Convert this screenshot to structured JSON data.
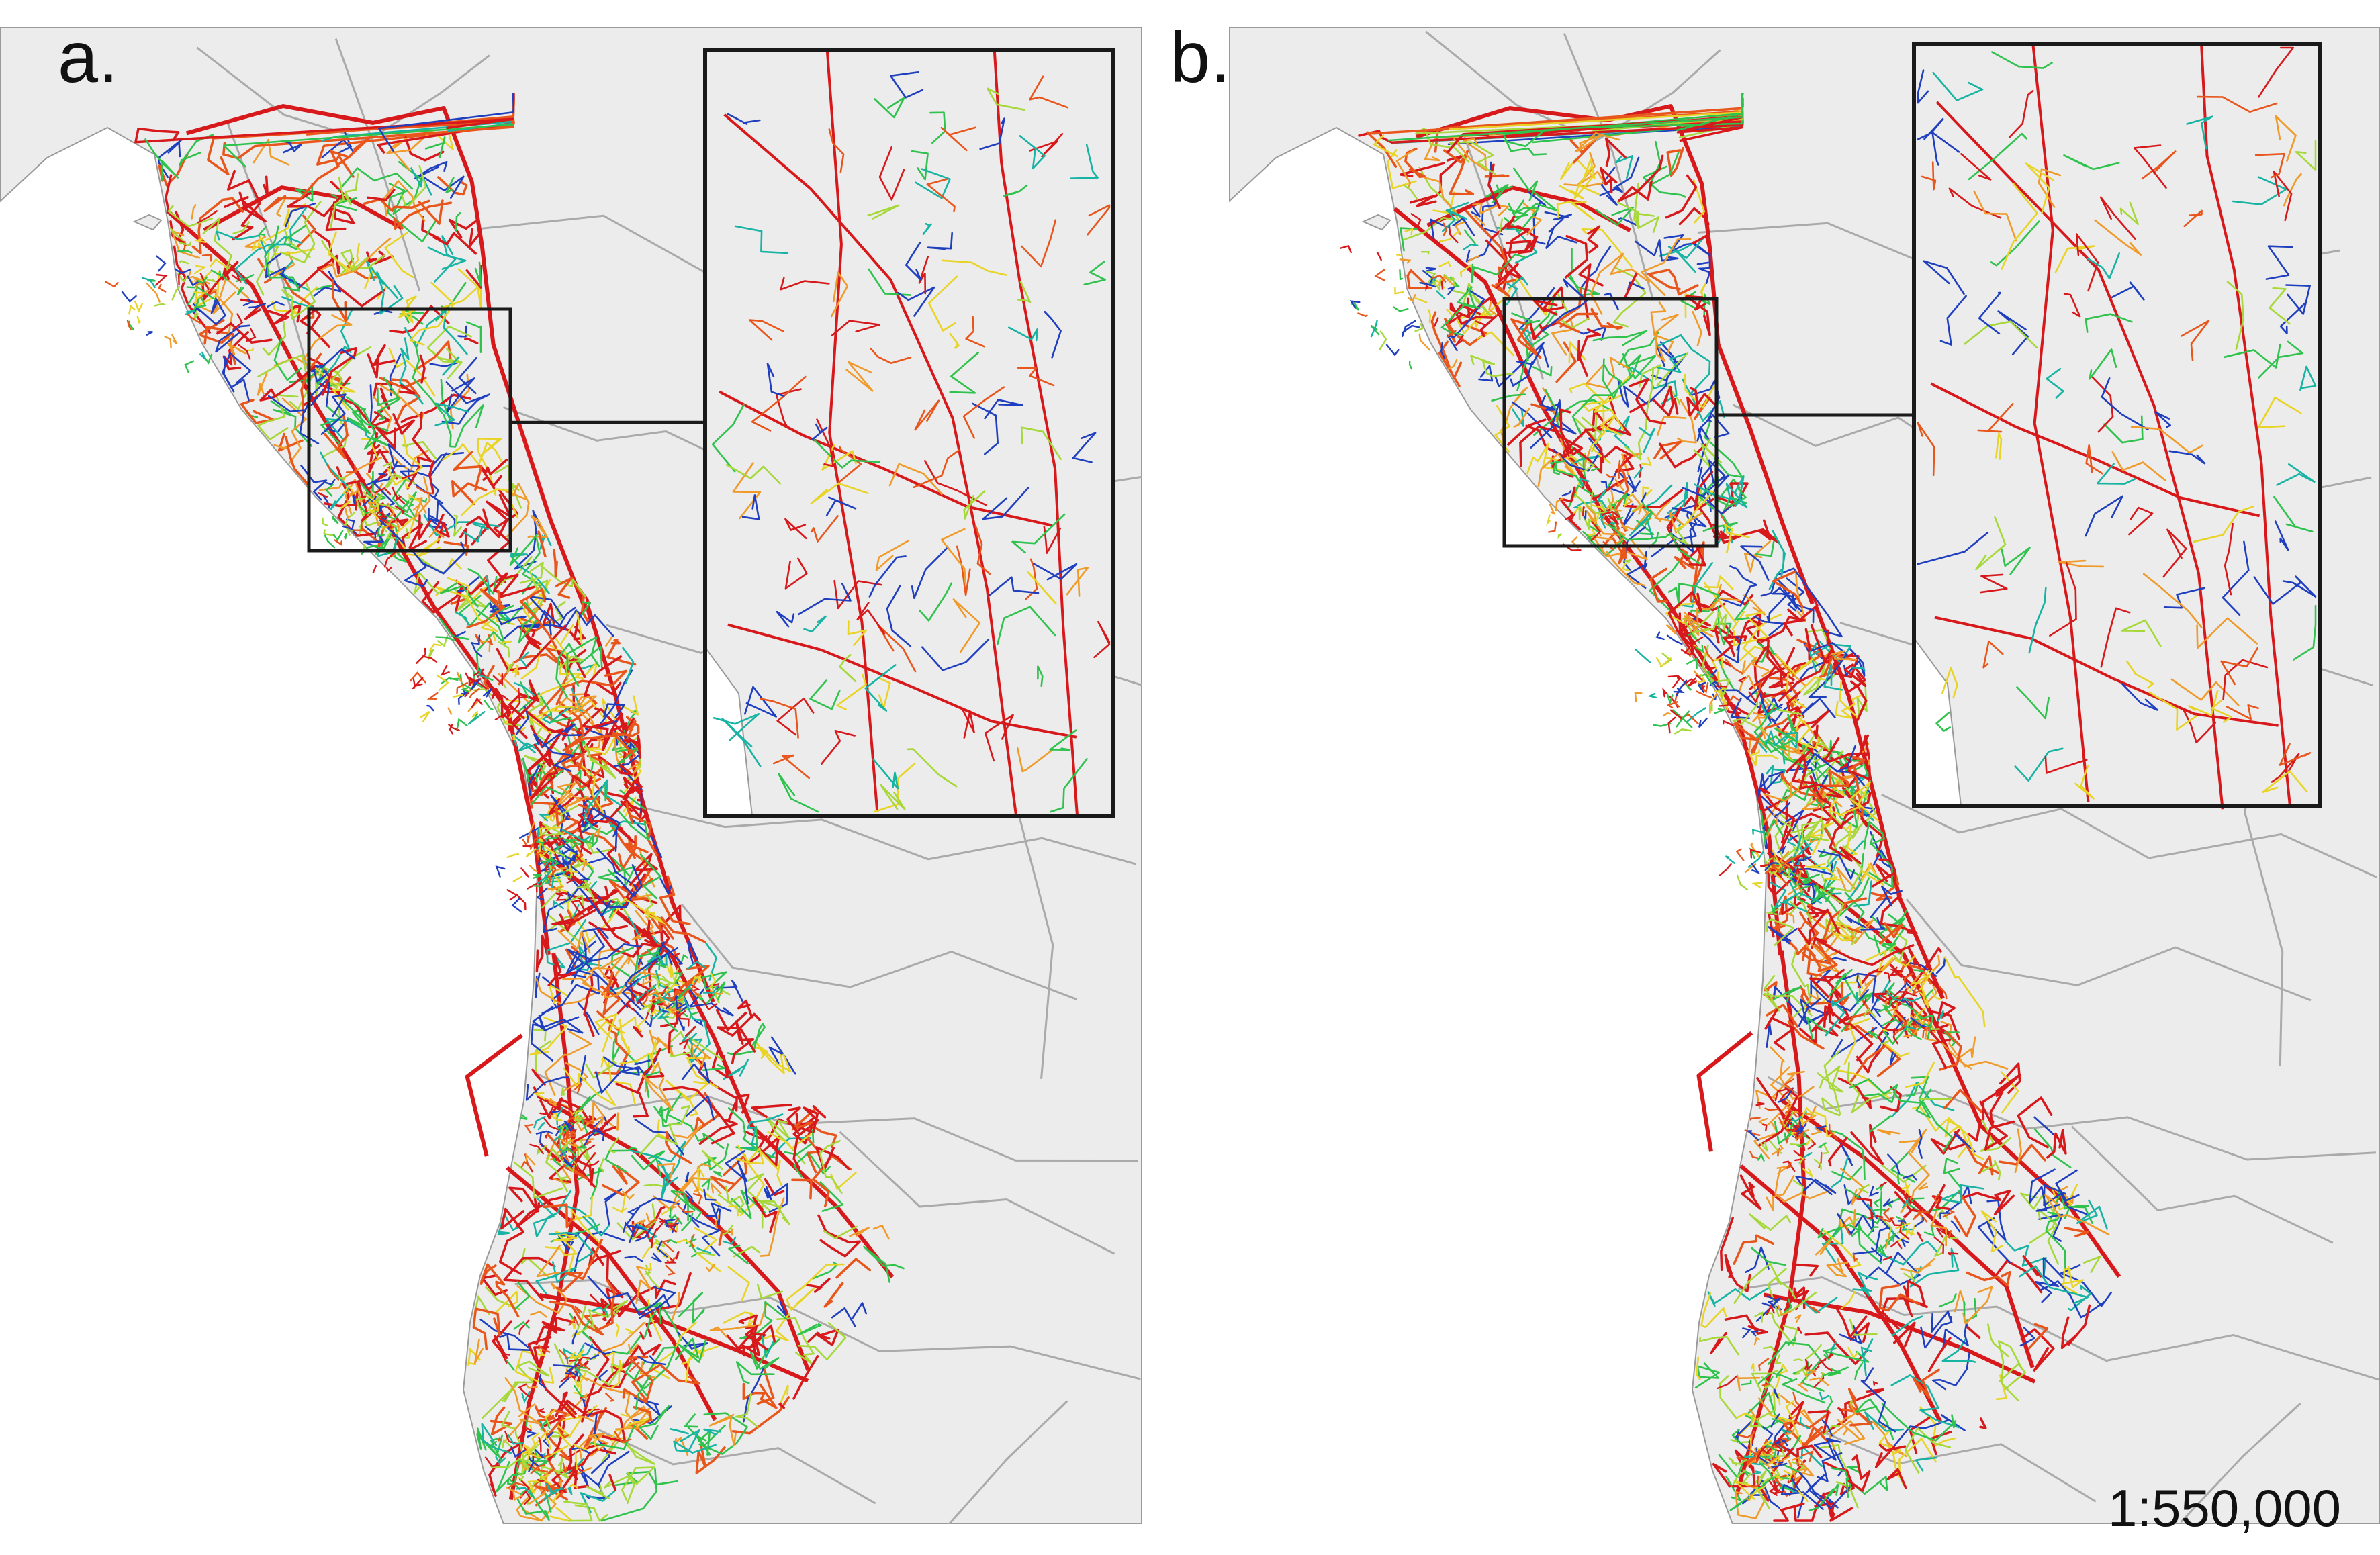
{
  "figure": {
    "panels": [
      {
        "id": "a",
        "label": "a."
      },
      {
        "id": "b",
        "label": "b."
      }
    ],
    "scale_label": "1:550,000"
  },
  "map": {
    "colors": {
      "land": "#ececec",
      "sea": "#ffffff",
      "district_boundary": "#aaaaaa",
      "inset_frame": "#1a1a1a",
      "network_palette": [
        "#d7191c",
        "#e8561c",
        "#f09a2a",
        "#e8d426",
        "#a6d83a",
        "#2fc24d",
        "#17b3a3",
        "#1f3fbf"
      ]
    }
  }
}
